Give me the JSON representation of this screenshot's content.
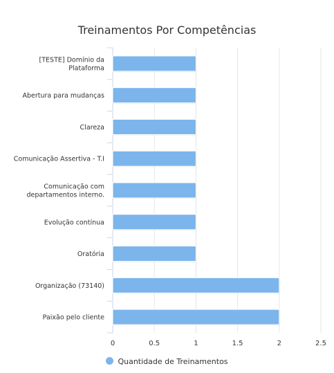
{
  "chart_data": {
    "type": "bar",
    "orientation": "horizontal",
    "title": "Treinamentos Por Competências",
    "categories": [
      "[TESTE] Domínio da Plataforma",
      "Abertura para mudanças",
      "Clareza",
      "Comunicação Assertiva - T.I",
      "Comunicação com departamentos interno.",
      "Evolução contínua",
      "Oratória",
      "Organização (73140)",
      "Paixão pelo cliente"
    ],
    "category_lines": [
      [
        "[TESTE] Domínio da",
        "Plataforma"
      ],
      [
        "Abertura para mudanças"
      ],
      [
        "Clareza"
      ],
      [
        "Comunicação Assertiva - T.I"
      ],
      [
        "Comunicação com",
        "departamentos interno."
      ],
      [
        "Evolução contínua"
      ],
      [
        "Oratória"
      ],
      [
        "Organização (73140)"
      ],
      [
        "Paixão pelo cliente"
      ]
    ],
    "series": [
      {
        "name": "Quantidade de Treinamentos",
        "values": [
          1,
          1,
          1,
          1,
          1,
          1,
          1,
          2,
          2
        ]
      }
    ],
    "xlim": [
      0,
      2.5
    ],
    "xticks": [
      "0",
      "0.5",
      "1",
      "1.5",
      "2",
      "2.5"
    ],
    "grid": "vertical",
    "legend_position": "bottom-center",
    "colors": {
      "bar": "#7cb5ec",
      "axis": "#ccd6eb",
      "grid": "#e6e6e6",
      "text": "#333333"
    }
  }
}
